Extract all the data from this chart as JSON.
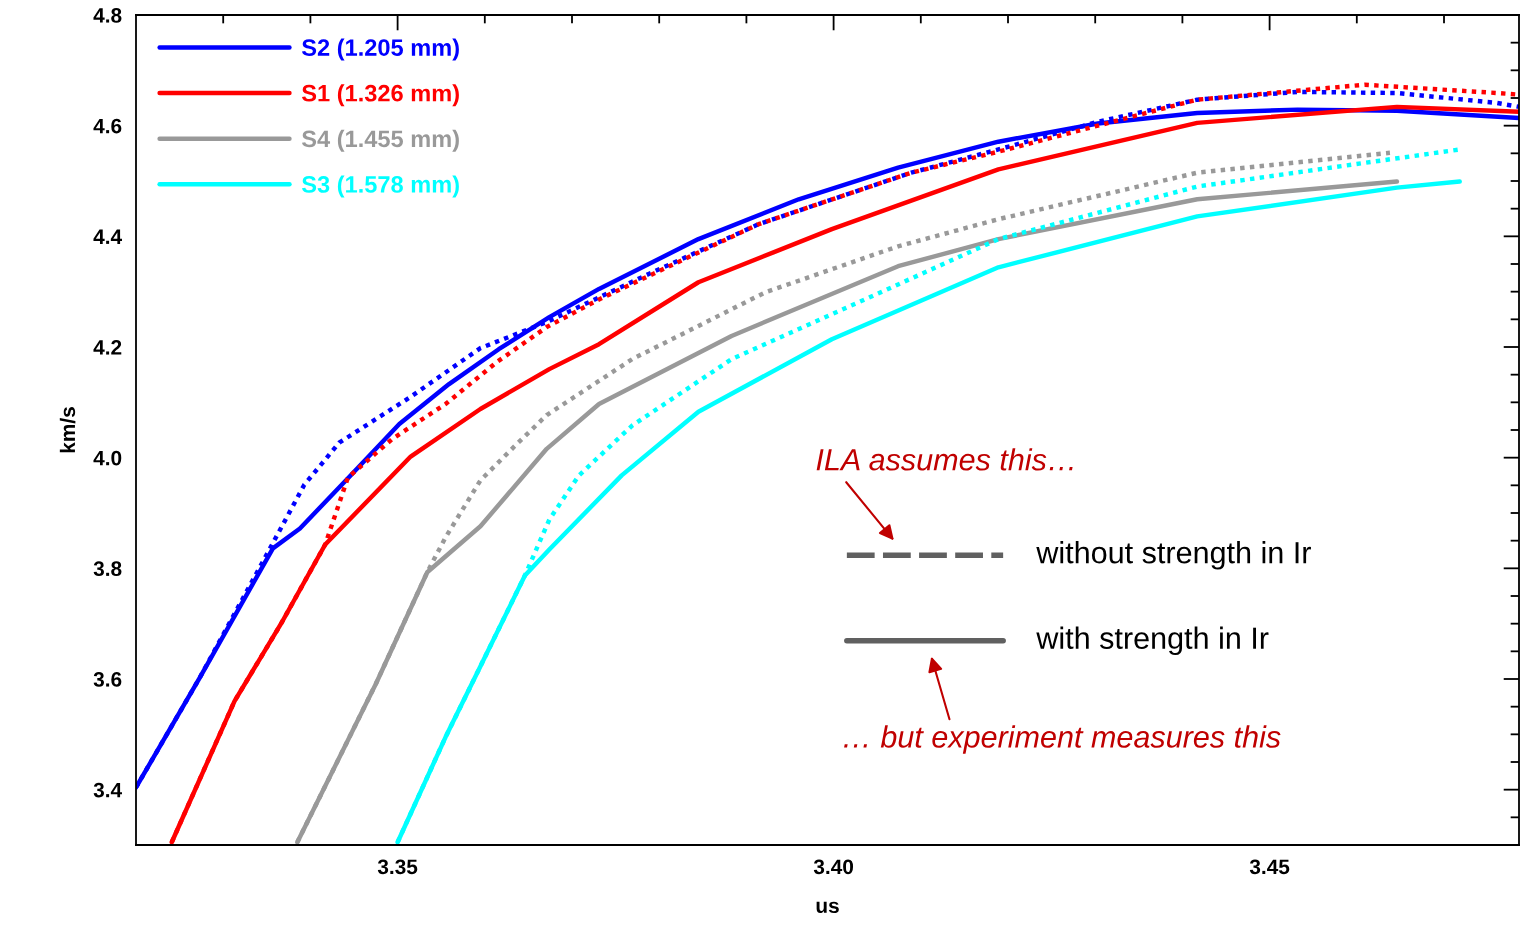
{
  "chart_data": {
    "type": "line",
    "xlabel": "us",
    "ylabel": "km/s",
    "legend": "top left",
    "line_style": "solid",
    "xlim": [
      3.32,
      3.4786
    ],
    "ylim": [
      3.3,
      4.8
    ],
    "xticks": [
      {
        "value": 3.33,
        "label": null
      },
      {
        "value": 3.34,
        "label": null
      },
      3.35,
      {
        "value": 3.36,
        "label": null
      },
      {
        "value": 3.37,
        "label": null
      },
      {
        "value": 3.38,
        "label": null
      },
      {
        "value": 3.39,
        "label": null
      },
      {
        "value": 3.4,
        "label": "3.40"
      },
      {
        "value": 3.41,
        "label": null
      },
      {
        "value": 3.42,
        "label": null
      },
      {
        "value": 3.43,
        "label": null
      },
      {
        "value": 3.44,
        "label": null
      },
      3.45,
      {
        "value": 3.46,
        "label": null
      },
      {
        "value": 3.47,
        "label": null
      }
    ],
    "yticks": [
      {
        "value": 3.35,
        "label": null
      },
      3.4,
      {
        "value": 3.45,
        "label": null
      },
      {
        "value": 3.5,
        "label": null
      },
      {
        "value": 3.55,
        "label": null
      },
      3.6,
      {
        "value": 3.65,
        "label": null
      },
      {
        "value": 3.7,
        "label": null
      },
      {
        "value": 3.75,
        "label": null
      },
      3.8,
      {
        "value": 3.85,
        "label": null
      },
      {
        "value": 3.9,
        "label": null
      },
      {
        "value": 3.95,
        "label": null
      },
      {
        "value": 4.0,
        "label": "4.0"
      },
      {
        "value": 4.05,
        "label": null
      },
      {
        "value": 4.1,
        "label": null
      },
      {
        "value": 4.15,
        "label": null
      },
      4.2,
      {
        "value": 4.25,
        "label": null
      },
      {
        "value": 4.3,
        "label": null
      },
      {
        "value": 4.35,
        "label": null
      },
      4.4,
      {
        "value": 4.45,
        "label": null
      },
      {
        "value": 4.5,
        "label": null
      },
      {
        "value": 4.55,
        "label": null
      },
      4.6,
      {
        "value": 4.65,
        "label": null
      },
      {
        "value": 4.7,
        "label": null
      },
      {
        "value": 4.75,
        "label": null
      },
      4.8
    ],
    "series": [
      {
        "name": "S2 (1.205 mm)",
        "color": "#0000ff",
        "x": [
          3.32,
          3.3273,
          3.3357,
          3.3388,
          3.3445,
          3.3502,
          3.3559,
          3.3616,
          3.3674,
          3.3731,
          3.3845,
          3.396,
          3.4074,
          3.4189,
          3.4303,
          3.4417,
          3.4532,
          3.4646,
          3.4786
        ],
        "values": [
          3.404,
          3.602,
          3.836,
          3.872,
          3.966,
          4.061,
          4.133,
          4.196,
          4.254,
          4.305,
          4.395,
          4.467,
          4.524,
          4.571,
          4.604,
          4.623,
          4.629,
          4.627,
          4.614
        ]
      },
      {
        "name": "S1 (1.326 mm)",
        "color": "#ff0000",
        "x": [
          3.3241,
          3.3313,
          3.3366,
          3.3417,
          3.3515,
          3.3595,
          3.3674,
          3.3731,
          3.3845,
          3.3998,
          3.4189,
          3.4417,
          3.4646,
          3.4786
        ],
        "values": [
          3.305,
          3.56,
          3.699,
          3.843,
          4.002,
          4.088,
          4.16,
          4.205,
          4.317,
          4.413,
          4.521,
          4.605,
          4.634,
          4.625
        ]
      },
      {
        "name": "S4 (1.455 mm)",
        "color": "#999999",
        "x": [
          3.3385,
          3.3475,
          3.3534,
          3.3595,
          3.3671,
          3.3731,
          3.3883,
          3.4074,
          3.4189,
          3.4417,
          3.4646
        ],
        "values": [
          3.305,
          3.591,
          3.793,
          3.876,
          4.016,
          4.097,
          4.22,
          4.346,
          4.395,
          4.467,
          4.499
        ]
      },
      {
        "name": "S3 (1.578 mm)",
        "color": "#00ffff",
        "x": [
          3.35,
          3.3555,
          3.3595,
          3.3646,
          3.3674,
          3.3757,
          3.3845,
          3.3998,
          3.4189,
          3.4417,
          3.4646,
          3.4718
        ],
        "values": [
          3.305,
          3.495,
          3.623,
          3.787,
          3.834,
          3.968,
          4.083,
          4.214,
          4.344,
          4.436,
          4.488,
          4.499
        ]
      },
      {
        "color": "#0000ff",
        "line_style": "dotted",
        "x": [
          3.32,
          3.3273,
          3.3353,
          3.3393,
          3.3433,
          3.3515,
          3.3595,
          3.3671,
          3.3788,
          3.3914,
          3.4089,
          3.4189,
          3.4303,
          3.4417,
          3.4532,
          3.4646,
          3.4761,
          3.4786
        ],
        "values": [
          3.404,
          3.602,
          3.834,
          3.951,
          4.027,
          4.11,
          4.198,
          4.245,
          4.332,
          4.422,
          4.515,
          4.557,
          4.607,
          4.647,
          4.661,
          4.659,
          4.641,
          4.634
        ]
      },
      {
        "color": "#ff0000",
        "line_style": "dotted",
        "x": [
          3.3241,
          3.3313,
          3.3366,
          3.3417,
          3.3443,
          3.3494,
          3.3555,
          3.3614,
          3.3671,
          3.3731,
          3.3914,
          3.4089,
          3.4189,
          3.4417,
          3.4609,
          3.4761,
          3.4786
        ],
        "values": [
          3.305,
          3.56,
          3.699,
          3.843,
          3.964,
          4.034,
          4.097,
          4.173,
          4.236,
          4.286,
          4.422,
          4.515,
          4.553,
          4.647,
          4.674,
          4.659,
          4.656
        ]
      },
      {
        "color": "#999999",
        "line_style": "dotted",
        "x": [
          3.3385,
          3.3475,
          3.3534,
          3.3555,
          3.3595,
          3.3635,
          3.3671,
          3.3769,
          3.3922,
          3.4074,
          3.4189,
          3.4417,
          3.4638
        ],
        "values": [
          3.305,
          3.591,
          3.793,
          3.856,
          3.959,
          4.022,
          4.077,
          4.178,
          4.299,
          4.382,
          4.431,
          4.515,
          4.551
        ]
      },
      {
        "color": "#00ffff",
        "line_style": "dotted",
        "x": [
          3.35,
          3.3555,
          3.3595,
          3.3646,
          3.3674,
          3.3708,
          3.3769,
          3.3883,
          3.4036,
          3.4189,
          3.4417,
          3.4718
        ],
        "values": [
          3.305,
          3.495,
          3.623,
          3.787,
          3.888,
          3.968,
          4.058,
          4.178,
          4.286,
          4.395,
          4.49,
          4.557
        ]
      }
    ],
    "annotations": [
      "ILA assumes this…",
      "without strength in Ir",
      "with strength in Ir",
      "… but experiment measures this"
    ]
  }
}
